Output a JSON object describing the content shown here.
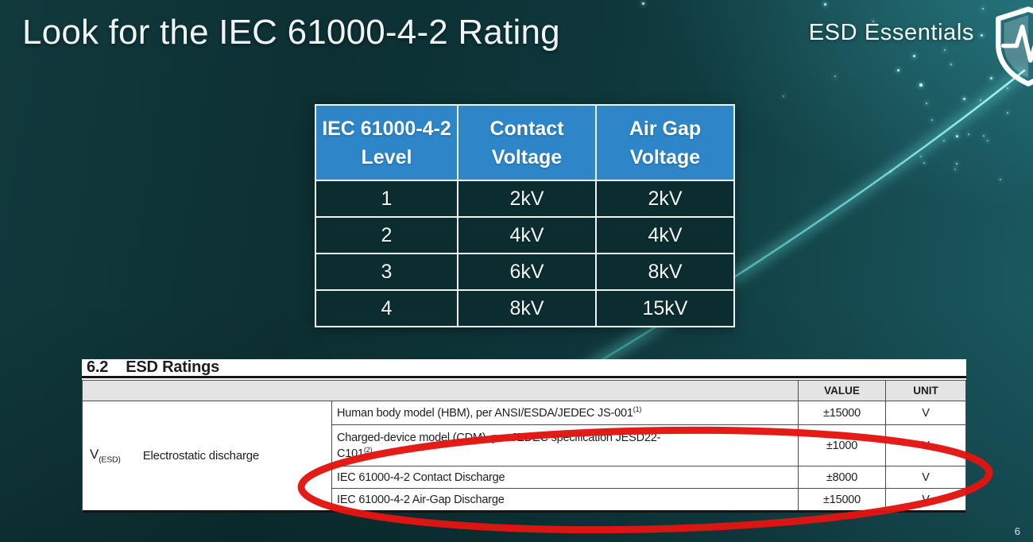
{
  "slide": {
    "title": "Look for the IEC 61000-4-2 Rating",
    "brand": "ESD Essentials",
    "page_number": "6"
  },
  "logo": {
    "icon": "shield-pulse-icon",
    "description": "white shield outline containing an ECG pulse line"
  },
  "iec_table": {
    "headers": [
      {
        "line1": "IEC 61000-4-2",
        "line2": "Level"
      },
      {
        "line1": "Contact",
        "line2": "Voltage"
      },
      {
        "line1": "Air Gap",
        "line2": "Voltage"
      }
    ],
    "rows": [
      [
        "1",
        "2kV",
        "2kV"
      ],
      [
        "2",
        "4kV",
        "4kV"
      ],
      [
        "3",
        "6kV",
        "8kV"
      ],
      [
        "4",
        "8kV",
        "15kV"
      ]
    ]
  },
  "datasheet": {
    "section_number": "6.2",
    "section_title": "ESD Ratings",
    "value_header": "VALUE",
    "unit_header": "UNIT",
    "symbol": "V",
    "symbol_subscript": "(ESD)",
    "parameter": "Electrostatic discharge",
    "rows": [
      {
        "line1": "Human body model (HBM), per ANSI/ESDA/JEDEC JS-001",
        "sup1": "(1)",
        "line2": "",
        "sup2": "",
        "value": "±15000",
        "unit": "V"
      },
      {
        "line1": "Charged-device model (CDM), per JEDEC specification JESD22-",
        "sup1": "",
        "line2": "C101",
        "sup2": "(2)",
        "value": "±1000",
        "unit": "V"
      },
      {
        "line1": "IEC 61000-4-2 Contact Discharge",
        "sup1": "",
        "line2": "",
        "sup2": "",
        "value": "±8000",
        "unit": "V"
      },
      {
        "line1": "IEC 61000-4-2 Air-Gap Discharge",
        "sup1": "",
        "line2": "",
        "sup2": "",
        "value": "±15000",
        "unit": "V"
      }
    ]
  },
  "annotation": {
    "shape": "ellipse",
    "color": "#e21511",
    "highlights": "IEC 61000-4-2 Contact and Air-Gap Discharge rows"
  },
  "colors": {
    "background_teal": "#0e373b",
    "header_blue": "#2d86c8",
    "table_cell_teal": "#0c2d30",
    "datasheet_header_gray": "#e4e4e4",
    "streak_cyan": "#5ce4dd",
    "annotation_red": "#e21511"
  }
}
